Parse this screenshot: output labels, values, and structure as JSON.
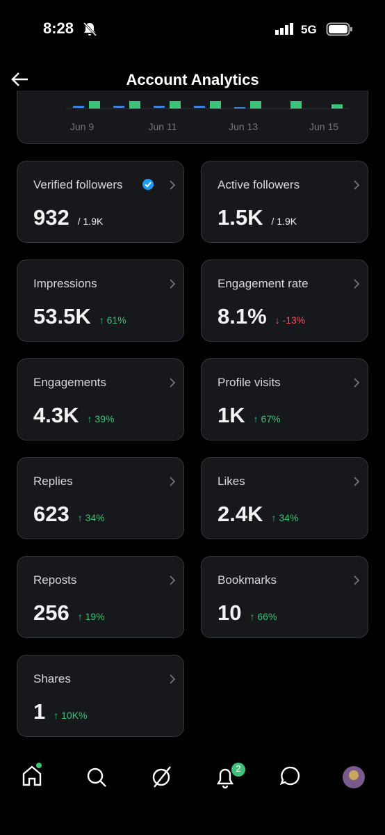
{
  "status_bar": {
    "time": "8:28",
    "network": "5G"
  },
  "header": {
    "title": "Account Analytics"
  },
  "chart": {
    "x_labels": [
      "Jun 9",
      "Jun 11",
      "Jun 13",
      "Jun 15"
    ]
  },
  "cards": [
    {
      "label": "Verified followers",
      "value": "932",
      "total": "/ 1.9K"
    },
    {
      "label": "Active followers",
      "value": "1.5K",
      "total": "/ 1.9K"
    },
    {
      "label": "Impressions",
      "value": "53.5K",
      "change": "↑ 61%"
    },
    {
      "label": "Engagement rate",
      "value": "8.1%",
      "change": "↓ -13%"
    },
    {
      "label": "Engagements",
      "value": "4.3K",
      "change": "↑ 39%"
    },
    {
      "label": "Profile visits",
      "value": "1K",
      "change": "↑ 67%"
    },
    {
      "label": "Replies",
      "value": "623",
      "change": "↑ 34%"
    },
    {
      "label": "Likes",
      "value": "2.4K",
      "change": "↑ 34%"
    },
    {
      "label": "Reposts",
      "value": "256",
      "change": "↑ 19%"
    },
    {
      "label": "Bookmarks",
      "value": "10",
      "change": "↑ 66%"
    },
    {
      "label": "Shares",
      "value": "1",
      "change": "↑ 10K%"
    }
  ],
  "nav": {
    "notifications_badge": "2"
  }
}
